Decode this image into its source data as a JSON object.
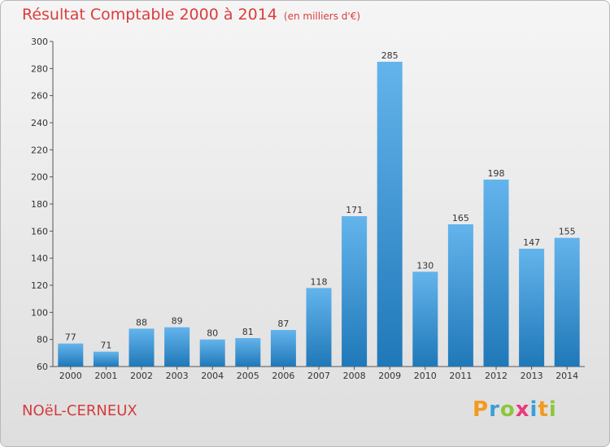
{
  "header": {
    "title": "Résultat Comptable 2000 à 2014",
    "subtitle": "(en milliers d'€)"
  },
  "footer": {
    "commune": "NOëL-CERNEUX",
    "logo": [
      "P",
      "r",
      "o",
      "x",
      "i",
      "t",
      "i"
    ]
  },
  "colors": {
    "title": "#dc3c3c",
    "bar_light": "#64b4ec",
    "bar_dark": "#1f78b8"
  },
  "chart_data": {
    "type": "bar",
    "title": "Résultat Comptable 2000 à 2014",
    "subtitle": "(en milliers d'€)",
    "categories": [
      "2000",
      "2001",
      "2002",
      "2003",
      "2004",
      "2005",
      "2006",
      "2007",
      "2008",
      "2009",
      "2010",
      "2011",
      "2012",
      "2013",
      "2014"
    ],
    "values": [
      77,
      71,
      88,
      89,
      80,
      81,
      87,
      118,
      171,
      285,
      130,
      165,
      198,
      147,
      155
    ],
    "ylim": [
      60,
      300
    ],
    "yticks": [
      60,
      80,
      100,
      120,
      140,
      160,
      180,
      200,
      220,
      240,
      260,
      280,
      300
    ],
    "xlabel": "",
    "ylabel": "",
    "grid": false,
    "legend": "none"
  }
}
